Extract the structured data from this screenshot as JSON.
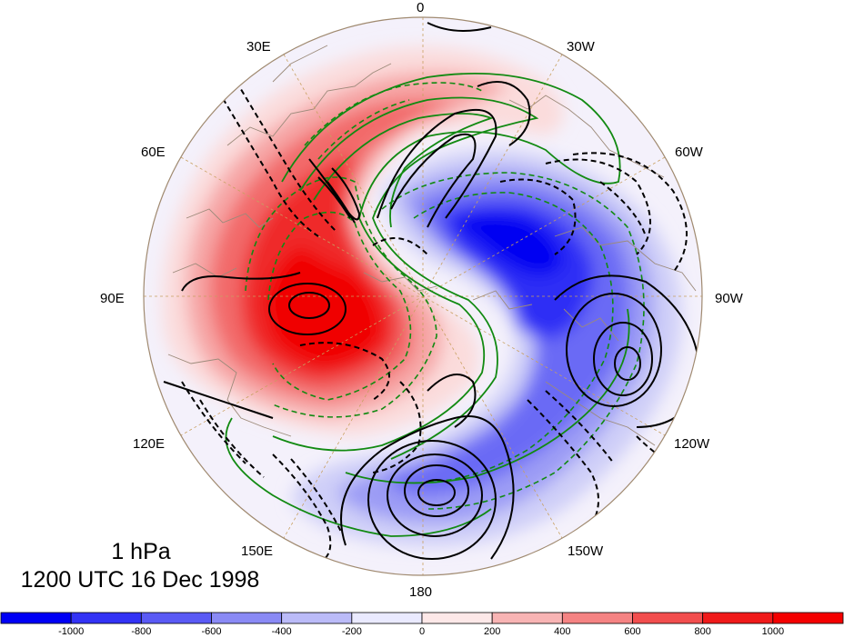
{
  "map": {
    "level_label": "1 hPa",
    "time_label": "1200 UTC 16 Dec 1998",
    "longitude_labels": {
      "lon_0": "0",
      "lon_30w": "30W",
      "lon_60w": "60W",
      "lon_90w": "90W",
      "lon_120w": "120W",
      "lon_150w": "150W",
      "lon_180": "180",
      "lon_150e": "150E",
      "lon_120e": "120E",
      "lon_90e": "90E",
      "lon_60e": "60E",
      "lon_30e": "30E"
    }
  },
  "colorbar": {
    "ticks": [
      "-1000",
      "-800",
      "-600",
      "-400",
      "-200",
      "0",
      "200",
      "400",
      "600",
      "800",
      "1000"
    ],
    "colors": [
      "#0000f5",
      "#3333f5",
      "#5a5af5",
      "#8a8af5",
      "#bbbbf8",
      "#eaeaff",
      "#fde8e8",
      "#f8b4b4",
      "#f58383",
      "#f24e4e",
      "#f01a1a",
      "#f40000"
    ]
  },
  "colors": {
    "positive_shading": "#f01a1a",
    "negative_shading": "#0000f5",
    "black_contour": "#000000",
    "green_contour": "#128a12",
    "coastline": "#9c8a7a"
  }
}
